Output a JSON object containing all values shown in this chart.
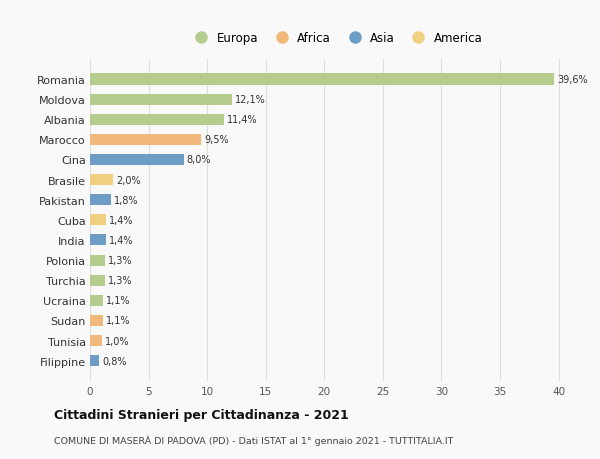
{
  "countries": [
    "Romania",
    "Moldova",
    "Albania",
    "Marocco",
    "Cina",
    "Brasile",
    "Pakistan",
    "Cuba",
    "India",
    "Polonia",
    "Turchia",
    "Ucraina",
    "Sudan",
    "Tunisia",
    "Filippine"
  ],
  "values": [
    39.6,
    12.1,
    11.4,
    9.5,
    8.0,
    2.0,
    1.8,
    1.4,
    1.4,
    1.3,
    1.3,
    1.1,
    1.1,
    1.0,
    0.8
  ],
  "labels": [
    "39,6%",
    "12,1%",
    "11,4%",
    "9,5%",
    "8,0%",
    "2,0%",
    "1,8%",
    "1,4%",
    "1,4%",
    "1,3%",
    "1,3%",
    "1,1%",
    "1,1%",
    "1,0%",
    "0,8%"
  ],
  "continents": [
    "Europa",
    "Europa",
    "Europa",
    "Africa",
    "Asia",
    "America",
    "Asia",
    "America",
    "Asia",
    "Europa",
    "Europa",
    "Europa",
    "Africa",
    "Africa",
    "Asia"
  ],
  "colors": {
    "Europa": "#b5cc8e",
    "Africa": "#f0b87b",
    "Asia": "#6d9dc5",
    "America": "#f0d080"
  },
  "legend_order": [
    "Europa",
    "Africa",
    "Asia",
    "America"
  ],
  "title": "Cittadini Stranieri per Cittadinanza - 2021",
  "subtitle": "COMUNE DI MASERÀ DI PADOVA (PD) - Dati ISTAT al 1° gennaio 2021 - TUTTITALIA.IT",
  "xlim": [
    0,
    42
  ],
  "xticks": [
    0,
    5,
    10,
    15,
    20,
    25,
    30,
    35,
    40
  ],
  "bg_color": "#f9f9f9",
  "grid_color": "#dddddd",
  "bar_height": 0.55
}
